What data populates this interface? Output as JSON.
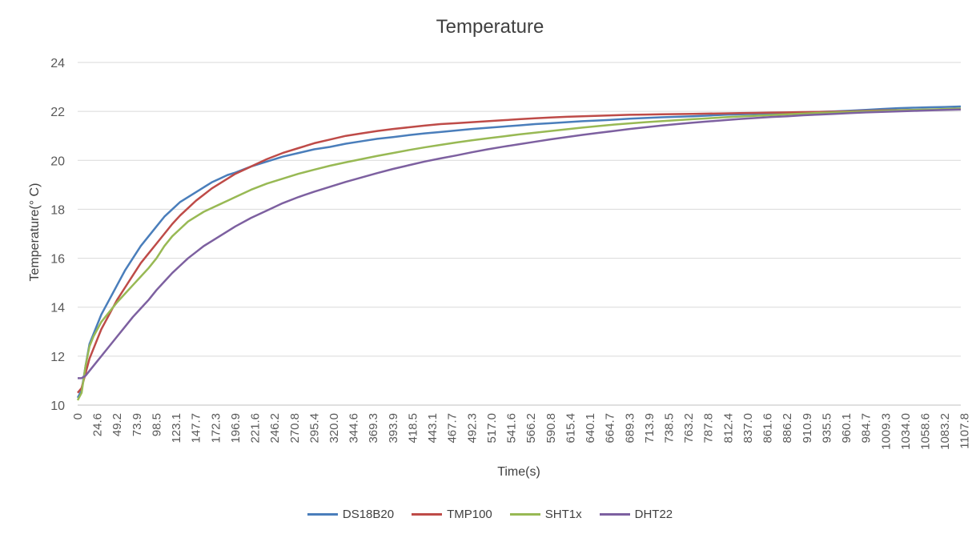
{
  "chart_data": {
    "type": "line",
    "title": "Temperature",
    "xlabel": "Time(s)",
    "ylabel": "Temperature(° C)",
    "xlim": [
      0,
      1120
    ],
    "ylim": [
      10,
      24
    ],
    "yticks": [
      10,
      12,
      14,
      16,
      18,
      20,
      22,
      24
    ],
    "xtick_labels": [
      "0",
      "24.6",
      "49.2",
      "73.9",
      "98.5",
      "123.1",
      "147.7",
      "172.3",
      "196.9",
      "221.6",
      "246.2",
      "270.8",
      "295.4",
      "320.0",
      "344.6",
      "369.3",
      "393.9",
      "418.5",
      "443.1",
      "467.7",
      "492.3",
      "517.0",
      "541.6",
      "566.2",
      "590.8",
      "615.4",
      "640.1",
      "664.7",
      "689.3",
      "713.9",
      "738.5",
      "763.2",
      "787.8",
      "812.4",
      "837.0",
      "861.6",
      "886.2",
      "910.9",
      "935.5",
      "960.1",
      "984.7",
      "1009.3",
      "1034.0",
      "1058.6",
      "1083.2",
      "1107.8"
    ],
    "grid": true,
    "legend_position": "bottom",
    "series": [
      {
        "name": "DS18B20",
        "color": "#4A7EBB",
        "x": [
          0,
          5,
          10,
          15,
          20,
          25,
          30,
          35,
          40,
          45,
          50,
          60,
          70,
          80,
          90,
          100,
          110,
          120,
          130,
          140,
          150,
          160,
          170,
          180,
          190,
          200,
          220,
          240,
          260,
          280,
          300,
          320,
          340,
          360,
          380,
          400,
          420,
          440,
          460,
          480,
          500,
          520,
          540,
          560,
          580,
          600,
          620,
          640,
          660,
          680,
          700,
          720,
          740,
          760,
          780,
          800,
          820,
          840,
          860,
          880,
          900,
          920,
          940,
          960,
          980,
          1000,
          1020,
          1040,
          1060,
          1080,
          1100,
          1120
        ],
        "y": [
          10.3,
          10.6,
          11.6,
          12.5,
          12.9,
          13.3,
          13.7,
          14.0,
          14.3,
          14.6,
          14.9,
          15.5,
          16.0,
          16.5,
          16.9,
          17.3,
          17.7,
          18.0,
          18.3,
          18.5,
          18.7,
          18.9,
          19.1,
          19.25,
          19.4,
          19.5,
          19.75,
          19.95,
          20.15,
          20.3,
          20.45,
          20.55,
          20.68,
          20.78,
          20.88,
          20.95,
          21.03,
          21.1,
          21.16,
          21.22,
          21.28,
          21.33,
          21.38,
          21.43,
          21.48,
          21.52,
          21.56,
          21.6,
          21.63,
          21.66,
          21.7,
          21.73,
          21.76,
          21.78,
          21.8,
          21.83,
          21.86,
          21.88,
          21.9,
          21.92,
          21.94,
          21.96,
          21.98,
          22.0,
          22.03,
          22.06,
          22.1,
          22.13,
          22.15,
          22.17,
          22.18,
          22.2
        ]
      },
      {
        "name": "TMP100",
        "color": "#BE4B48",
        "x": [
          0,
          5,
          10,
          15,
          20,
          25,
          30,
          35,
          40,
          45,
          50,
          60,
          70,
          80,
          90,
          100,
          110,
          120,
          130,
          140,
          150,
          160,
          170,
          180,
          190,
          200,
          220,
          240,
          260,
          280,
          300,
          320,
          340,
          360,
          380,
          400,
          420,
          440,
          460,
          480,
          500,
          520,
          540,
          560,
          580,
          600,
          620,
          640,
          660,
          680,
          700,
          720,
          740,
          760,
          780,
          800,
          820,
          840,
          860,
          880,
          900,
          920,
          940,
          960,
          980,
          1000,
          1020,
          1040,
          1060,
          1080,
          1100,
          1120
        ],
        "y": [
          10.5,
          10.7,
          11.3,
          11.9,
          12.3,
          12.7,
          13.1,
          13.4,
          13.7,
          14.0,
          14.3,
          14.8,
          15.3,
          15.8,
          16.2,
          16.6,
          17.0,
          17.4,
          17.75,
          18.05,
          18.35,
          18.6,
          18.85,
          19.05,
          19.25,
          19.45,
          19.75,
          20.05,
          20.3,
          20.5,
          20.7,
          20.85,
          21.0,
          21.1,
          21.2,
          21.28,
          21.35,
          21.42,
          21.48,
          21.52,
          21.56,
          21.6,
          21.64,
          21.68,
          21.72,
          21.75,
          21.78,
          21.8,
          21.82,
          21.84,
          21.86,
          21.87,
          21.88,
          21.89,
          21.9,
          21.91,
          21.92,
          21.93,
          21.94,
          21.95,
          21.96,
          21.97,
          21.98,
          21.99,
          22.0,
          22.02,
          22.04,
          22.05,
          22.06,
          22.07,
          22.08,
          22.1
        ]
      },
      {
        "name": "SHT1x",
        "color": "#98B954",
        "x": [
          0,
          5,
          10,
          15,
          20,
          25,
          30,
          35,
          40,
          45,
          50,
          60,
          70,
          80,
          90,
          100,
          110,
          120,
          130,
          140,
          150,
          160,
          170,
          180,
          190,
          200,
          220,
          240,
          260,
          280,
          300,
          320,
          340,
          360,
          380,
          400,
          420,
          440,
          460,
          480,
          500,
          520,
          540,
          560,
          580,
          600,
          620,
          640,
          660,
          680,
          700,
          720,
          740,
          760,
          780,
          800,
          820,
          840,
          860,
          880,
          900,
          920,
          940,
          960,
          980,
          1000,
          1020,
          1040,
          1060,
          1080,
          1100,
          1120
        ],
        "y": [
          10.2,
          10.5,
          11.6,
          12.4,
          12.8,
          13.1,
          13.4,
          13.6,
          13.8,
          14.0,
          14.2,
          14.55,
          14.9,
          15.25,
          15.6,
          16.0,
          16.5,
          16.9,
          17.2,
          17.5,
          17.7,
          17.9,
          18.05,
          18.2,
          18.35,
          18.5,
          18.8,
          19.05,
          19.25,
          19.45,
          19.62,
          19.78,
          19.92,
          20.05,
          20.18,
          20.3,
          20.42,
          20.53,
          20.63,
          20.73,
          20.82,
          20.9,
          20.98,
          21.06,
          21.13,
          21.2,
          21.27,
          21.34,
          21.4,
          21.46,
          21.51,
          21.56,
          21.6,
          21.64,
          21.68,
          21.72,
          21.76,
          21.79,
          21.82,
          21.85,
          21.88,
          21.91,
          21.94,
          21.96,
          21.98,
          22.0,
          22.02,
          22.04,
          22.06,
          22.08,
          22.1,
          22.12
        ]
      },
      {
        "name": "DHT22",
        "color": "#7D60A0",
        "x": [
          0,
          5,
          10,
          15,
          20,
          25,
          30,
          35,
          40,
          45,
          50,
          60,
          70,
          80,
          90,
          100,
          110,
          120,
          130,
          140,
          150,
          160,
          170,
          180,
          190,
          200,
          220,
          240,
          260,
          280,
          300,
          320,
          340,
          360,
          380,
          400,
          420,
          440,
          460,
          480,
          500,
          520,
          540,
          560,
          580,
          600,
          620,
          640,
          660,
          680,
          700,
          720,
          740,
          760,
          780,
          800,
          820,
          840,
          860,
          880,
          900,
          920,
          940,
          960,
          980,
          1000,
          1020,
          1040,
          1060,
          1080,
          1100,
          1120
        ],
        "y": [
          11.1,
          11.1,
          11.2,
          11.4,
          11.6,
          11.8,
          12.0,
          12.2,
          12.4,
          12.6,
          12.8,
          13.2,
          13.6,
          13.95,
          14.3,
          14.7,
          15.05,
          15.4,
          15.7,
          16.0,
          16.25,
          16.5,
          16.7,
          16.9,
          17.1,
          17.3,
          17.65,
          17.95,
          18.25,
          18.5,
          18.72,
          18.92,
          19.12,
          19.3,
          19.48,
          19.65,
          19.8,
          19.95,
          20.08,
          20.2,
          20.33,
          20.45,
          20.56,
          20.66,
          20.76,
          20.86,
          20.95,
          21.04,
          21.12,
          21.2,
          21.28,
          21.35,
          21.42,
          21.48,
          21.54,
          21.59,
          21.64,
          21.69,
          21.73,
          21.77,
          21.8,
          21.84,
          21.87,
          21.9,
          21.93,
          21.96,
          21.98,
          22.0,
          22.02,
          22.04,
          22.06,
          22.08
        ]
      }
    ]
  }
}
